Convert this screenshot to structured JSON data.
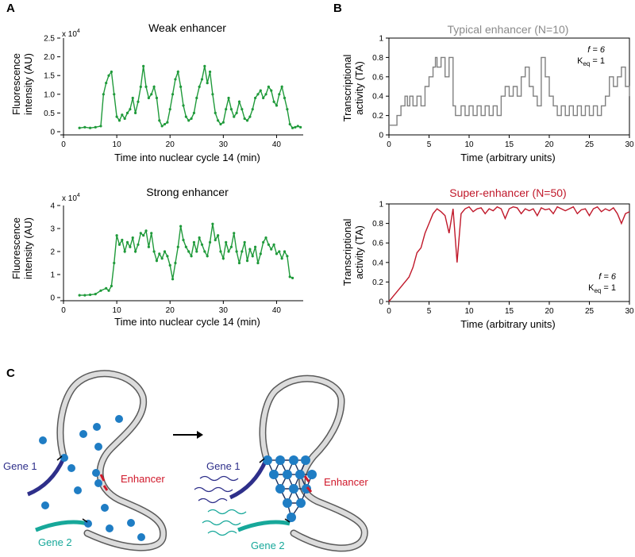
{
  "panel_labels": {
    "a": "A",
    "b": "B",
    "c": "C"
  },
  "charts": {
    "weak": {
      "title": "Weak enhancer",
      "ylabel_line1": "Fluorescence",
      "ylabel_line2": "intensity (AU)",
      "xlabel": "Time into nuclear cycle 14 (min)",
      "multiplier": "x 10",
      "multiplier_exp": "4",
      "xticks": [
        "0",
        "10",
        "20",
        "30",
        "40"
      ],
      "yticks": [
        "0",
        "0.5",
        "1.0",
        "1.5",
        "2.0",
        "2.5"
      ]
    },
    "strong": {
      "title": "Strong enhancer",
      "ylabel_line1": "Fluorescence",
      "ylabel_line2": "intensity (AU)",
      "xlabel": "Time into nuclear cycle 14 (min)",
      "multiplier": "x 10",
      "multiplier_exp": "4",
      "xticks": [
        "0",
        "10",
        "20",
        "30",
        "40"
      ],
      "yticks": [
        "0",
        "1",
        "2",
        "3",
        "4"
      ]
    },
    "typical": {
      "title": "Typical enhancer (N=10)",
      "ylabel_line1": "Transcriptional",
      "ylabel_line2": "activity (TA)",
      "xlabel": "Time (arbitrary units)",
      "xticks": [
        "0",
        "5",
        "10",
        "15",
        "20",
        "25",
        "30"
      ],
      "yticks": [
        "0",
        "0.2",
        "0.4",
        "0.6",
        "0.8",
        "1"
      ],
      "param_f": "f = 6",
      "param_k": "K",
      "param_k_sub": "eq",
      "param_k_val": " = 1"
    },
    "super": {
      "title": "Super-enhancer (N=50)",
      "ylabel_line1": "Transcriptional",
      "ylabel_line2": "activity (TA)",
      "xlabel": "Time (arbitrary units)",
      "xticks": [
        "0",
        "5",
        "10",
        "15",
        "20",
        "25",
        "30"
      ],
      "yticks": [
        "0",
        "0.2",
        "0.4",
        "0.6",
        "0.8",
        "1"
      ],
      "param_f": "f = 6",
      "param_k": "K",
      "param_k_sub": "eq",
      "param_k_val": " = 1"
    }
  },
  "diagram": {
    "gene1": "Gene 1",
    "gene2": "Gene 2",
    "enhancer": "Enhancer",
    "colors": {
      "gene1": "#2e2f8a",
      "gene2": "#17a89a",
      "enhancer": "#d0182a",
      "tf": "#1f7dc4",
      "green": "#1f9a3a",
      "red": "#c0182a",
      "gray": "#808080"
    }
  },
  "chart_data": [
    {
      "type": "line",
      "title": "Weak enhancer",
      "xlabel": "Time into nuclear cycle 14 (min)",
      "ylabel": "Fluorescence intensity (AU)",
      "y_multiplier": "x 10^4",
      "xlim": [
        0,
        45
      ],
      "ylim": [
        0,
        2.5
      ],
      "x": [
        3,
        4,
        5,
        6,
        7,
        7.5,
        8,
        8.5,
        9,
        9.5,
        10,
        10.5,
        11,
        11.5,
        12,
        12.5,
        13,
        13.5,
        14,
        14.5,
        15,
        15.5,
        16,
        16.5,
        17,
        17.5,
        18,
        18.5,
        19,
        19.5,
        20,
        20.5,
        21,
        21.5,
        22,
        22.5,
        23,
        23.5,
        24,
        24.5,
        25,
        25.5,
        26,
        26.5,
        27,
        27.5,
        28,
        28.5,
        29,
        29.5,
        30,
        30.5,
        31,
        31.5,
        32,
        32.5,
        33,
        33.5,
        34,
        34.5,
        35,
        35.5,
        36,
        36.5,
        37,
        37.5,
        38,
        38.5,
        39,
        39.5,
        40,
        40.5,
        41,
        41.5,
        42,
        42.5,
        43,
        43.5,
        44,
        44.5
      ],
      "values": [
        0.1,
        0.12,
        0.1,
        0.12,
        0.15,
        1.0,
        1.3,
        1.5,
        1.6,
        1.0,
        0.4,
        0.3,
        0.45,
        0.35,
        0.5,
        0.6,
        0.9,
        0.5,
        0.8,
        1.2,
        1.75,
        1.2,
        0.9,
        1.0,
        1.2,
        0.9,
        0.3,
        0.15,
        0.2,
        0.25,
        0.6,
        1.0,
        1.4,
        1.6,
        1.2,
        0.7,
        0.4,
        0.3,
        0.35,
        0.5,
        0.9,
        1.2,
        1.4,
        1.75,
        1.3,
        1.6,
        1.0,
        0.5,
        0.3,
        0.2,
        0.25,
        0.6,
        0.9,
        0.6,
        0.4,
        0.5,
        0.8,
        0.6,
        0.35,
        0.3,
        0.4,
        0.6,
        0.9,
        1.0,
        1.1,
        0.9,
        1.0,
        1.2,
        1.1,
        0.8,
        0.7,
        1.0,
        1.2,
        0.9,
        0.6,
        0.2,
        0.1,
        0.12,
        0.15,
        0.12
      ]
    },
    {
      "type": "line",
      "title": "Strong enhancer",
      "xlabel": "Time into nuclear cycle 14 (min)",
      "ylabel": "Fluorescence intensity (AU)",
      "y_multiplier": "x 10^4",
      "xlim": [
        0,
        45
      ],
      "ylim": [
        0,
        4
      ],
      "x": [
        3,
        4,
        5,
        6,
        7,
        8,
        8.5,
        9,
        9.5,
        10,
        10.5,
        11,
        11.5,
        12,
        12.5,
        13,
        13.5,
        14,
        14.5,
        15,
        15.5,
        16,
        16.5,
        17,
        17.5,
        18,
        18.5,
        19,
        19.5,
        20,
        20.5,
        21,
        21.5,
        22,
        22.5,
        23,
        23.5,
        24,
        24.5,
        25,
        25.5,
        26,
        26.5,
        27,
        27.5,
        28,
        28.5,
        29,
        29.5,
        30,
        30.5,
        31,
        31.5,
        32,
        32.5,
        33,
        33.5,
        34,
        34.5,
        35,
        35.5,
        36,
        36.5,
        37,
        37.5,
        38,
        38.5,
        39,
        39.5,
        40,
        40.5,
        41,
        41.5,
        42,
        42.5,
        43
      ],
      "values": [
        0.1,
        0.1,
        0.12,
        0.15,
        0.3,
        0.4,
        0.3,
        0.5,
        1.5,
        2.7,
        2.3,
        2.5,
        2.0,
        2.4,
        2.2,
        2.6,
        2.0,
        2.3,
        2.8,
        2.7,
        2.9,
        2.2,
        2.8,
        2.0,
        1.6,
        1.9,
        1.7,
        2.0,
        1.8,
        1.4,
        0.8,
        1.5,
        2.2,
        3.1,
        2.5,
        2.2,
        2.0,
        1.8,
        2.4,
        2.0,
        2.6,
        2.3,
        2.0,
        1.8,
        2.4,
        3.2,
        2.5,
        2.7,
        2.0,
        1.7,
        2.4,
        2.0,
        2.2,
        2.8,
        2.0,
        1.5,
        2.0,
        2.4,
        1.6,
        2.1,
        1.8,
        2.2,
        1.5,
        1.9,
        2.4,
        2.6,
        2.3,
        2.1,
        2.3,
        1.9,
        2.0,
        1.7,
        2.0,
        1.8,
        0.9,
        0.85
      ]
    },
    {
      "type": "line",
      "title": "Typical enhancer (N=10)",
      "xlabel": "Time (arbitrary units)",
      "ylabel": "Transcriptional activity (TA)",
      "annotations": [
        "f = 6",
        "Keq = 1"
      ],
      "xlim": [
        0,
        30
      ],
      "ylim": [
        0,
        1
      ],
      "step": true,
      "x": [
        0,
        1,
        1.5,
        2,
        2.3,
        2.6,
        3,
        3.5,
        4,
        4.5,
        5,
        5.5,
        5.8,
        6,
        6.5,
        7,
        7.5,
        8,
        8.3,
        9,
        9.5,
        10,
        10.5,
        11,
        11.5,
        12,
        12.5,
        13,
        13.5,
        14,
        14.5,
        15,
        15.5,
        16,
        16.5,
        17,
        17.5,
        18,
        18.5,
        19,
        19.5,
        20,
        20.5,
        21,
        21.5,
        22,
        22.5,
        23,
        23.5,
        24,
        24.5,
        25,
        25.5,
        26,
        26.5,
        27,
        27.5,
        28,
        28.5,
        29,
        29.5,
        30
      ],
      "values": [
        0.1,
        0.2,
        0.3,
        0.4,
        0.3,
        0.4,
        0.3,
        0.4,
        0.3,
        0.5,
        0.6,
        0.7,
        0.8,
        0.7,
        0.8,
        0.6,
        0.8,
        0.3,
        0.2,
        0.3,
        0.2,
        0.3,
        0.2,
        0.3,
        0.2,
        0.3,
        0.2,
        0.3,
        0.2,
        0.4,
        0.5,
        0.4,
        0.5,
        0.4,
        0.6,
        0.7,
        0.5,
        0.4,
        0.3,
        0.8,
        0.6,
        0.4,
        0.3,
        0.2,
        0.3,
        0.2,
        0.3,
        0.2,
        0.3,
        0.2,
        0.3,
        0.2,
        0.3,
        0.2,
        0.3,
        0.4,
        0.6,
        0.5,
        0.6,
        0.7,
        0.5,
        0.4
      ]
    },
    {
      "type": "line",
      "title": "Super-enhancer (N=50)",
      "xlabel": "Time (arbitrary units)",
      "ylabel": "Transcriptional activity (TA)",
      "annotations": [
        "f = 6",
        "Keq = 1"
      ],
      "xlim": [
        0,
        30
      ],
      "ylim": [
        0,
        1
      ],
      "x": [
        0,
        0.5,
        1,
        1.5,
        2,
        2.5,
        3,
        3.5,
        4,
        4.5,
        5,
        5.5,
        6,
        6.5,
        7,
        7.5,
        8,
        8.5,
        9,
        9.5,
        10,
        10.5,
        11,
        11.5,
        12,
        12.5,
        13,
        13.5,
        14,
        14.5,
        15,
        15.5,
        16,
        16.5,
        17,
        17.5,
        18,
        18.5,
        19,
        19.5,
        20,
        20.5,
        21,
        21.5,
        22,
        22.5,
        23,
        23.5,
        24,
        24.5,
        25,
        25.5,
        26,
        26.5,
        27,
        27.5,
        28,
        28.5,
        29,
        29.5,
        30
      ],
      "values": [
        0,
        0.05,
        0.1,
        0.15,
        0.2,
        0.25,
        0.35,
        0.5,
        0.55,
        0.7,
        0.8,
        0.9,
        0.95,
        0.92,
        0.88,
        0.7,
        0.95,
        0.4,
        0.9,
        0.95,
        0.97,
        0.92,
        0.95,
        0.96,
        0.9,
        0.95,
        0.93,
        0.97,
        0.95,
        0.85,
        0.95,
        0.97,
        0.96,
        0.9,
        0.95,
        0.93,
        0.95,
        0.88,
        0.96,
        0.94,
        0.95,
        0.9,
        0.97,
        0.95,
        0.93,
        0.95,
        0.97,
        0.9,
        0.94,
        0.95,
        0.88,
        0.95,
        0.97,
        0.92,
        0.95,
        0.93,
        0.96,
        0.9,
        0.8,
        0.9,
        0.92
      ]
    }
  ]
}
